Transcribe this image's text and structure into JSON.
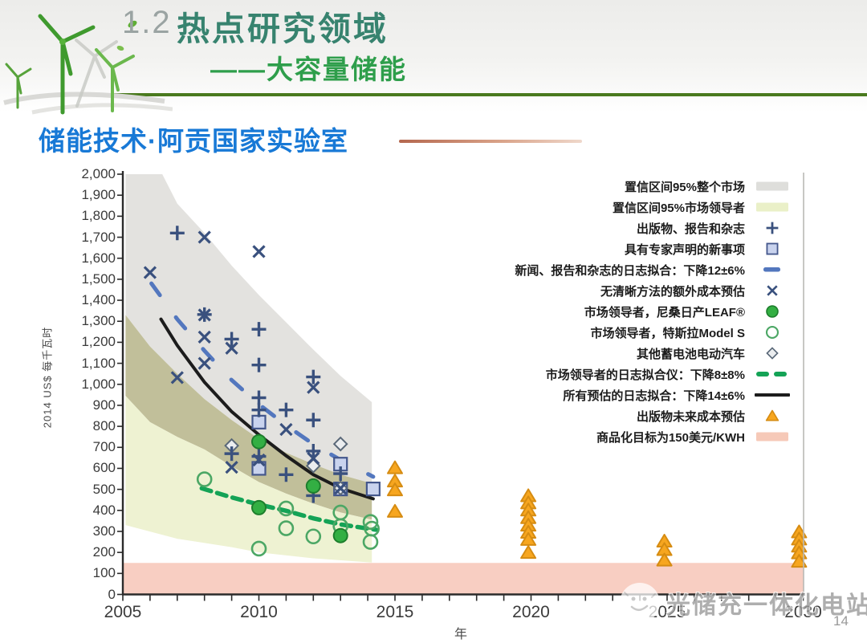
{
  "header": {
    "section_number": "1.2",
    "title": "热点研究领域",
    "subtitle": "——大容量储能",
    "subheading": "储能技术·阿贡国家实验室",
    "colors": {
      "title": "#37836F",
      "subtitle": "#2E9E4B",
      "subheading": "#1879D6",
      "rule": "#4A7A1E"
    }
  },
  "footer": {
    "watermark": "光储充一体化电站",
    "page_number": "14"
  },
  "chart_data": {
    "type": "scatter",
    "title": "",
    "xlabel": "年",
    "ylabel": "2014 US$ 每千瓦时",
    "xlim": [
      2005,
      2030
    ],
    "ylim": [
      0,
      2000
    ],
    "x_tick_labels": [
      2005,
      2010,
      2015,
      2020,
      2025,
      2030
    ],
    "x_minor_tick_step": 1,
    "y_tick_step": 100,
    "grid": false,
    "legend_position": "upper right",
    "target_band": {
      "label": "商品化目标为150美元/KWH",
      "from": 0,
      "to": 150,
      "color": "#F8CEC2"
    },
    "regions": [
      {
        "name": "ci95-whole-market",
        "color": "#E3E2DF",
        "top": [
          [
            2005.1,
            2000
          ],
          [
            2006.45,
            2000
          ],
          [
            2007,
            1860
          ],
          [
            2008,
            1720
          ],
          [
            2009,
            1565
          ],
          [
            2010,
            1425
          ],
          [
            2011,
            1295
          ],
          [
            2012,
            1165
          ],
          [
            2013,
            1040
          ],
          [
            2014.15,
            915
          ]
        ],
        "bottom": [
          [
            2005.1,
            1330
          ],
          [
            2006,
            1180
          ],
          [
            2007,
            1050
          ],
          [
            2008,
            930
          ],
          [
            2009,
            830
          ],
          [
            2010,
            740
          ],
          [
            2011,
            675
          ],
          [
            2012,
            620
          ],
          [
            2013,
            570
          ],
          [
            2014.15,
            528
          ]
        ]
      },
      {
        "name": "ci95-overlap",
        "color": "#C1BF9A",
        "top": [
          [
            2005.1,
            1330
          ],
          [
            2006,
            1180
          ],
          [
            2007,
            1050
          ],
          [
            2008,
            930
          ],
          [
            2009,
            830
          ],
          [
            2010,
            740
          ],
          [
            2011,
            675
          ],
          [
            2012,
            620
          ],
          [
            2013,
            570
          ],
          [
            2014.15,
            528
          ]
        ],
        "bottom": [
          [
            2005.1,
            945
          ],
          [
            2006,
            820
          ],
          [
            2007,
            750
          ],
          [
            2008,
            690
          ],
          [
            2009,
            610
          ],
          [
            2010,
            535
          ],
          [
            2011,
            480
          ],
          [
            2012,
            432
          ],
          [
            2013,
            390
          ],
          [
            2014.15,
            356
          ]
        ]
      },
      {
        "name": "ci95-market-leaders",
        "color": "#EEF2D2",
        "top": [
          [
            2005.1,
            945
          ],
          [
            2006,
            820
          ],
          [
            2007,
            750
          ],
          [
            2008,
            690
          ],
          [
            2009,
            610
          ],
          [
            2010,
            535
          ],
          [
            2011,
            480
          ],
          [
            2012,
            432
          ],
          [
            2013,
            390
          ],
          [
            2014.15,
            356
          ]
        ],
        "bottom": [
          [
            2005.1,
            330
          ],
          [
            2007,
            265
          ],
          [
            2009,
            225
          ],
          [
            2010,
            200
          ],
          [
            2012,
            172
          ],
          [
            2014.15,
            152
          ]
        ]
      }
    ],
    "lines": [
      {
        "name": "news-log-fit",
        "label": "新闻、报告和杂志的日志拟合：下降12±6%",
        "color": "#5377BE",
        "width": 5,
        "dash": "18 34",
        "points": [
          [
            2006.05,
            1480
          ],
          [
            2007,
            1310
          ],
          [
            2008,
            1160
          ],
          [
            2009,
            1020
          ],
          [
            2010,
            905
          ],
          [
            2011,
            805
          ],
          [
            2012,
            715
          ],
          [
            2013,
            640
          ],
          [
            2014.2,
            560
          ]
        ]
      },
      {
        "name": "all-estimates-log-fit",
        "label": "所有预估的日志拟合：下降14±6%",
        "color": "#1c1c1c",
        "width": 4,
        "dash": null,
        "points": [
          [
            2006.4,
            1310
          ],
          [
            2007,
            1185
          ],
          [
            2008,
            1010
          ],
          [
            2009,
            870
          ],
          [
            2010,
            760
          ],
          [
            2011,
            660
          ],
          [
            2012,
            570
          ],
          [
            2013,
            505
          ],
          [
            2014.2,
            455
          ]
        ]
      },
      {
        "name": "market-leaders-log-fit",
        "label": "市场领导者的日志拟合仪：下降8±8%",
        "color": "#14A356",
        "width": 5.5,
        "dash": "12 8",
        "points": [
          [
            2007.9,
            505
          ],
          [
            2009,
            462
          ],
          [
            2010,
            428
          ],
          [
            2011,
            398
          ],
          [
            2012,
            362
          ],
          [
            2013,
            333
          ],
          [
            2014.3,
            308
          ]
        ]
      }
    ],
    "series": [
      {
        "name": "publications-reports-journals",
        "label": "出版物、报告和杂志",
        "marker": "plus",
        "color": "#3A517E",
        "points": [
          [
            2007,
            1720
          ],
          [
            2008,
            1332
          ],
          [
            2009,
            1215
          ],
          [
            2009,
            670
          ],
          [
            2010,
            1262
          ],
          [
            2010,
            1092
          ],
          [
            2010,
            936
          ],
          [
            2010,
            878
          ],
          [
            2010,
            657
          ],
          [
            2011,
            878
          ],
          [
            2011,
            570
          ],
          [
            2012,
            1035
          ],
          [
            2012,
            830
          ],
          [
            2012,
            682
          ],
          [
            2012,
            470
          ],
          [
            2013,
            575
          ]
        ]
      },
      {
        "name": "expert-statement-news",
        "label": "具有专家声明的新事项",
        "marker": "square",
        "color": "#44578C",
        "fill": "#C9D3EE",
        "points": [
          [
            2010,
            820
          ],
          [
            2010,
            600
          ],
          [
            2013,
            620
          ],
          [
            2013,
            502
          ],
          [
            2014.2,
            502
          ]
        ]
      },
      {
        "name": "estimates-no-clear-method",
        "label": "无清晰方法的额外成本预估",
        "marker": "x",
        "color": "#3A517E",
        "points": [
          [
            2006,
            1532
          ],
          [
            2007,
            1032
          ],
          [
            2008,
            1700
          ],
          [
            2008,
            1330
          ],
          [
            2008,
            1225
          ],
          [
            2008,
            1100
          ],
          [
            2009,
            1172
          ],
          [
            2009,
            605
          ],
          [
            2010,
            1632
          ],
          [
            2010,
            640
          ],
          [
            2011,
            785
          ],
          [
            2012,
            985
          ],
          [
            2012,
            648
          ],
          [
            2013,
            505
          ]
        ]
      },
      {
        "name": "nissan-leaf",
        "label": "市场领导者，尼桑日产LEAF®",
        "marker": "circle-filled",
        "color": "#1D7E2C",
        "fill": "#33AF43",
        "points": [
          [
            2010,
            727
          ],
          [
            2010,
            413
          ],
          [
            2012,
            516
          ],
          [
            2013,
            280
          ]
        ]
      },
      {
        "name": "tesla-model-s",
        "label": "市场领导者，特斯拉Model S",
        "marker": "circle-open",
        "color": "#4CA765",
        "points": [
          [
            2008,
            548
          ],
          [
            2010,
            218
          ],
          [
            2011,
            409
          ],
          [
            2011,
            315
          ],
          [
            2012,
            276
          ],
          [
            2013,
            390
          ],
          [
            2013,
            325
          ],
          [
            2014.1,
            345
          ],
          [
            2014.15,
            313
          ],
          [
            2014.1,
            250
          ]
        ]
      },
      {
        "name": "other-battery-ev",
        "label": "其他蓄电池电动汽车",
        "marker": "diamond",
        "color": "#5A6878",
        "fill": "#EBEDEF",
        "points": [
          [
            2009,
            708
          ],
          [
            2012,
            612
          ],
          [
            2013,
            716
          ],
          [
            2013,
            506
          ]
        ]
      },
      {
        "name": "future-cost-estimates",
        "label": "出版物未来成本预估",
        "marker": "triangle",
        "color": "#D68C12",
        "fill": "#F7A61F",
        "points": [
          [
            2015,
            603
          ],
          [
            2015,
            540
          ],
          [
            2015,
            498
          ],
          [
            2015,
            396
          ],
          [
            2019.9,
            470
          ],
          [
            2019.9,
            436
          ],
          [
            2019.9,
            402
          ],
          [
            2019.9,
            366
          ],
          [
            2019.9,
            330
          ],
          [
            2019.9,
            296
          ],
          [
            2019.9,
            262
          ],
          [
            2019.9,
            200
          ],
          [
            2024.9,
            254
          ],
          [
            2024.9,
            214
          ],
          [
            2024.9,
            164
          ],
          [
            2029.85,
            298
          ],
          [
            2029.85,
            264
          ],
          [
            2029.85,
            230
          ],
          [
            2029.85,
            198
          ],
          [
            2029.85,
            158
          ]
        ]
      }
    ],
    "legend": [
      {
        "label": "置信区间95%整个市场",
        "swatch": "band",
        "color": "#DEDEDB"
      },
      {
        "label": "置信区间95%市场领导者",
        "swatch": "band",
        "color": "#EAF0C8"
      },
      {
        "label": "出版物、报告和杂志",
        "swatch": "plus",
        "color": "#3A517E"
      },
      {
        "label": "具有专家声明的新事项",
        "swatch": "square",
        "color": "#44578C",
        "fill": "#C9D3EE"
      },
      {
        "label": "新闻、报告和杂志的日志拟合：下降12±6%",
        "swatch": "dash",
        "color": "#5377BE"
      },
      {
        "label": "无清晰方法的额外成本预估",
        "swatch": "x",
        "color": "#3A517E"
      },
      {
        "label": "市场领导者，尼桑日产LEAF®",
        "swatch": "circle-filled",
        "color": "#1D7E2C",
        "fill": "#33AF43"
      },
      {
        "label": "市场领导者，特斯拉Model S",
        "swatch": "circle-open",
        "color": "#4CA765"
      },
      {
        "label": "其他蓄电池电动汽车",
        "swatch": "diamond",
        "color": "#5A6878",
        "fill": "#EBEDEF"
      },
      {
        "label": "市场领导者的日志拟合仪：下降8±8%",
        "swatch": "dash-double",
        "color": "#14A356"
      },
      {
        "label": "所有预估的日志拟合：下降14±6%",
        "swatch": "line",
        "color": "#1C1C1C"
      },
      {
        "label": "出版物未来成本预估",
        "swatch": "triangle",
        "color": "#D68C12",
        "fill": "#F7A61F"
      },
      {
        "label": "商品化目标为150美元/KWH",
        "swatch": "band",
        "color": "#F6C9B8"
      }
    ]
  }
}
